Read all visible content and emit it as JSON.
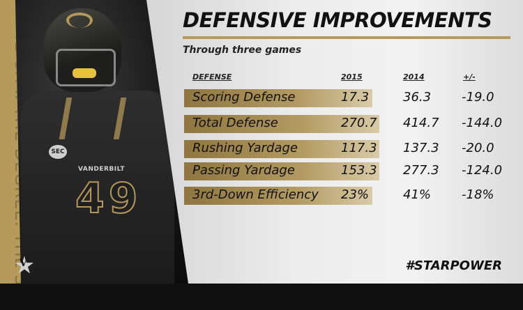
{
  "title": "DEFENSIVE IMPROVEMENTS",
  "subtitle": "Through three games",
  "headers": {
    "label": "DEFENSE",
    "y2015": "2015",
    "y2014": "2014",
    "diff": "+/-"
  },
  "rows": [
    {
      "label": "Scoring Defense",
      "y2015": "17.3",
      "y2014": "36.3",
      "diff": "-19.0"
    },
    {
      "label": "Total Defense",
      "y2015": "270.7",
      "y2014": "414.7",
      "diff": "-144.0"
    },
    {
      "label": "Rushing Yardage",
      "y2015": "117.3",
      "y2014": "137.3",
      "diff": "-20.0"
    },
    {
      "label": "Passing Yardage",
      "y2015": "153.3",
      "y2014": "277.3",
      "diff": "-124.0"
    },
    {
      "label": "3rd-Down Efficiency",
      "y2015": "23%",
      "y2014": "41%",
      "diff": "-18%"
    }
  ],
  "side_text": "THE CITY. THE DEGREE. THE SEC",
  "jersey": {
    "word": "VANDERBILT",
    "number": "49",
    "badge": "SEC"
  },
  "hashtag": "#STARPOWER",
  "colors": {
    "gold": "#b59a5c",
    "dark": "#111111",
    "panel": "#ececec"
  }
}
